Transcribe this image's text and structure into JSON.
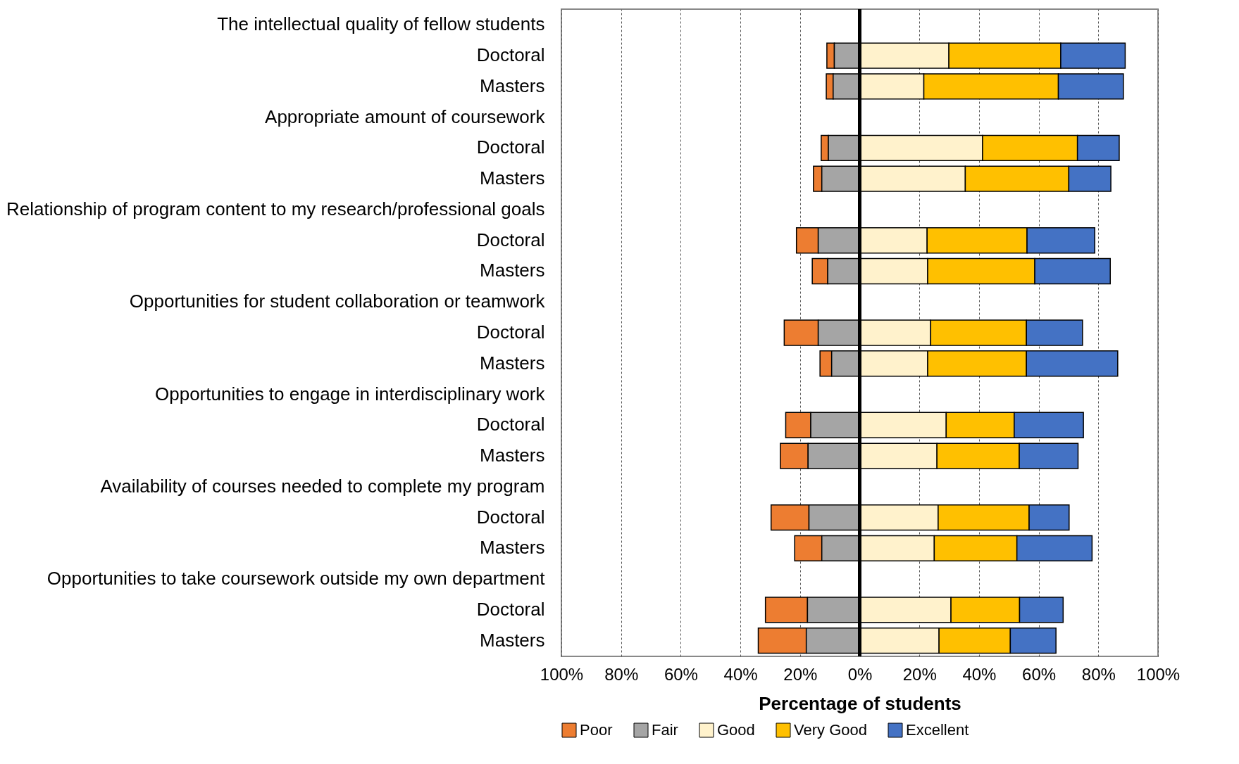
{
  "chart_data": {
    "type": "bar",
    "orientation": "horizontal",
    "stacked": true,
    "categories": [
      "The intellectual quality of fellow students",
      "Doctoral",
      "Masters",
      "Appropriate amount of coursework",
      "Doctoral",
      "Masters",
      "Relationship of program content to my research/professional goals",
      "Doctoral",
      "Masters",
      "Opportunities for student collaboration or teamwork",
      "Doctoral",
      "Masters",
      "Opportunities to engage in interdisciplinary work",
      "Doctoral",
      "Masters",
      "Availability of courses needed to complete my program",
      "Doctoral",
      "Masters",
      "Opportunities to take coursework outside my own department",
      "Doctoral",
      "Masters"
    ],
    "series": [
      {
        "name": "Poor",
        "color": "#ed7d31",
        "values": [
          null,
          -2.5,
          -2.3,
          null,
          -2.4,
          -2.8,
          null,
          -7.3,
          -5.2,
          null,
          -11.4,
          -3.9,
          null,
          -8.4,
          -9.3,
          null,
          -12.7,
          -9.1,
          null,
          -14.1,
          -16.1
        ]
      },
      {
        "name": "Fair",
        "color": "#a5a5a5",
        "values": [
          null,
          -8.5,
          -8.9,
          null,
          -10.5,
          -12.7,
          null,
          -13.9,
          -10.7,
          null,
          -13.9,
          -9.4,
          null,
          -16.4,
          -17.3,
          null,
          -17.0,
          -12.7,
          null,
          -17.5,
          -17.9
        ]
      },
      {
        "name": "Good",
        "color": "#fff2cc",
        "values": [
          null,
          29.9,
          21.5,
          null,
          41.2,
          35.4,
          null,
          22.6,
          22.8,
          null,
          23.8,
          22.8,
          null,
          29.0,
          25.9,
          null,
          26.3,
          25.0,
          null,
          30.6,
          26.6
        ]
      },
      {
        "name": "Very Good",
        "color": "#ffc000",
        "values": [
          null,
          37.5,
          45.1,
          null,
          31.8,
          34.7,
          null,
          33.5,
          35.9,
          null,
          32.1,
          33.1,
          null,
          22.8,
          27.6,
          null,
          30.5,
          27.7,
          null,
          23.0,
          23.9
        ]
      },
      {
        "name": "Excellent",
        "color": "#4472c4",
        "values": [
          null,
          21.6,
          21.8,
          null,
          14.0,
          14.1,
          null,
          22.7,
          25.3,
          null,
          18.8,
          30.6,
          null,
          23.2,
          19.7,
          null,
          13.4,
          25.2,
          null,
          14.6,
          15.3
        ]
      }
    ],
    "xlim": [
      -100,
      100
    ],
    "xticks": [
      {
        "value": -100,
        "label": "100%"
      },
      {
        "value": -80,
        "label": "80%"
      },
      {
        "value": -60,
        "label": "60%"
      },
      {
        "value": -40,
        "label": "40%"
      },
      {
        "value": -20,
        "label": "20%"
      },
      {
        "value": 0,
        "label": "0%"
      },
      {
        "value": 20,
        "label": "20%"
      },
      {
        "value": 40,
        "label": "40%"
      },
      {
        "value": 60,
        "label": "60%"
      },
      {
        "value": 80,
        "label": "80%"
      },
      {
        "value": 100,
        "label": "100%"
      }
    ],
    "xlabel": "Percentage of students",
    "grid": "x",
    "legend": "bottom",
    "ref_lines": [
      {
        "axis": "x",
        "value": 0,
        "color": "#000000"
      }
    ]
  }
}
